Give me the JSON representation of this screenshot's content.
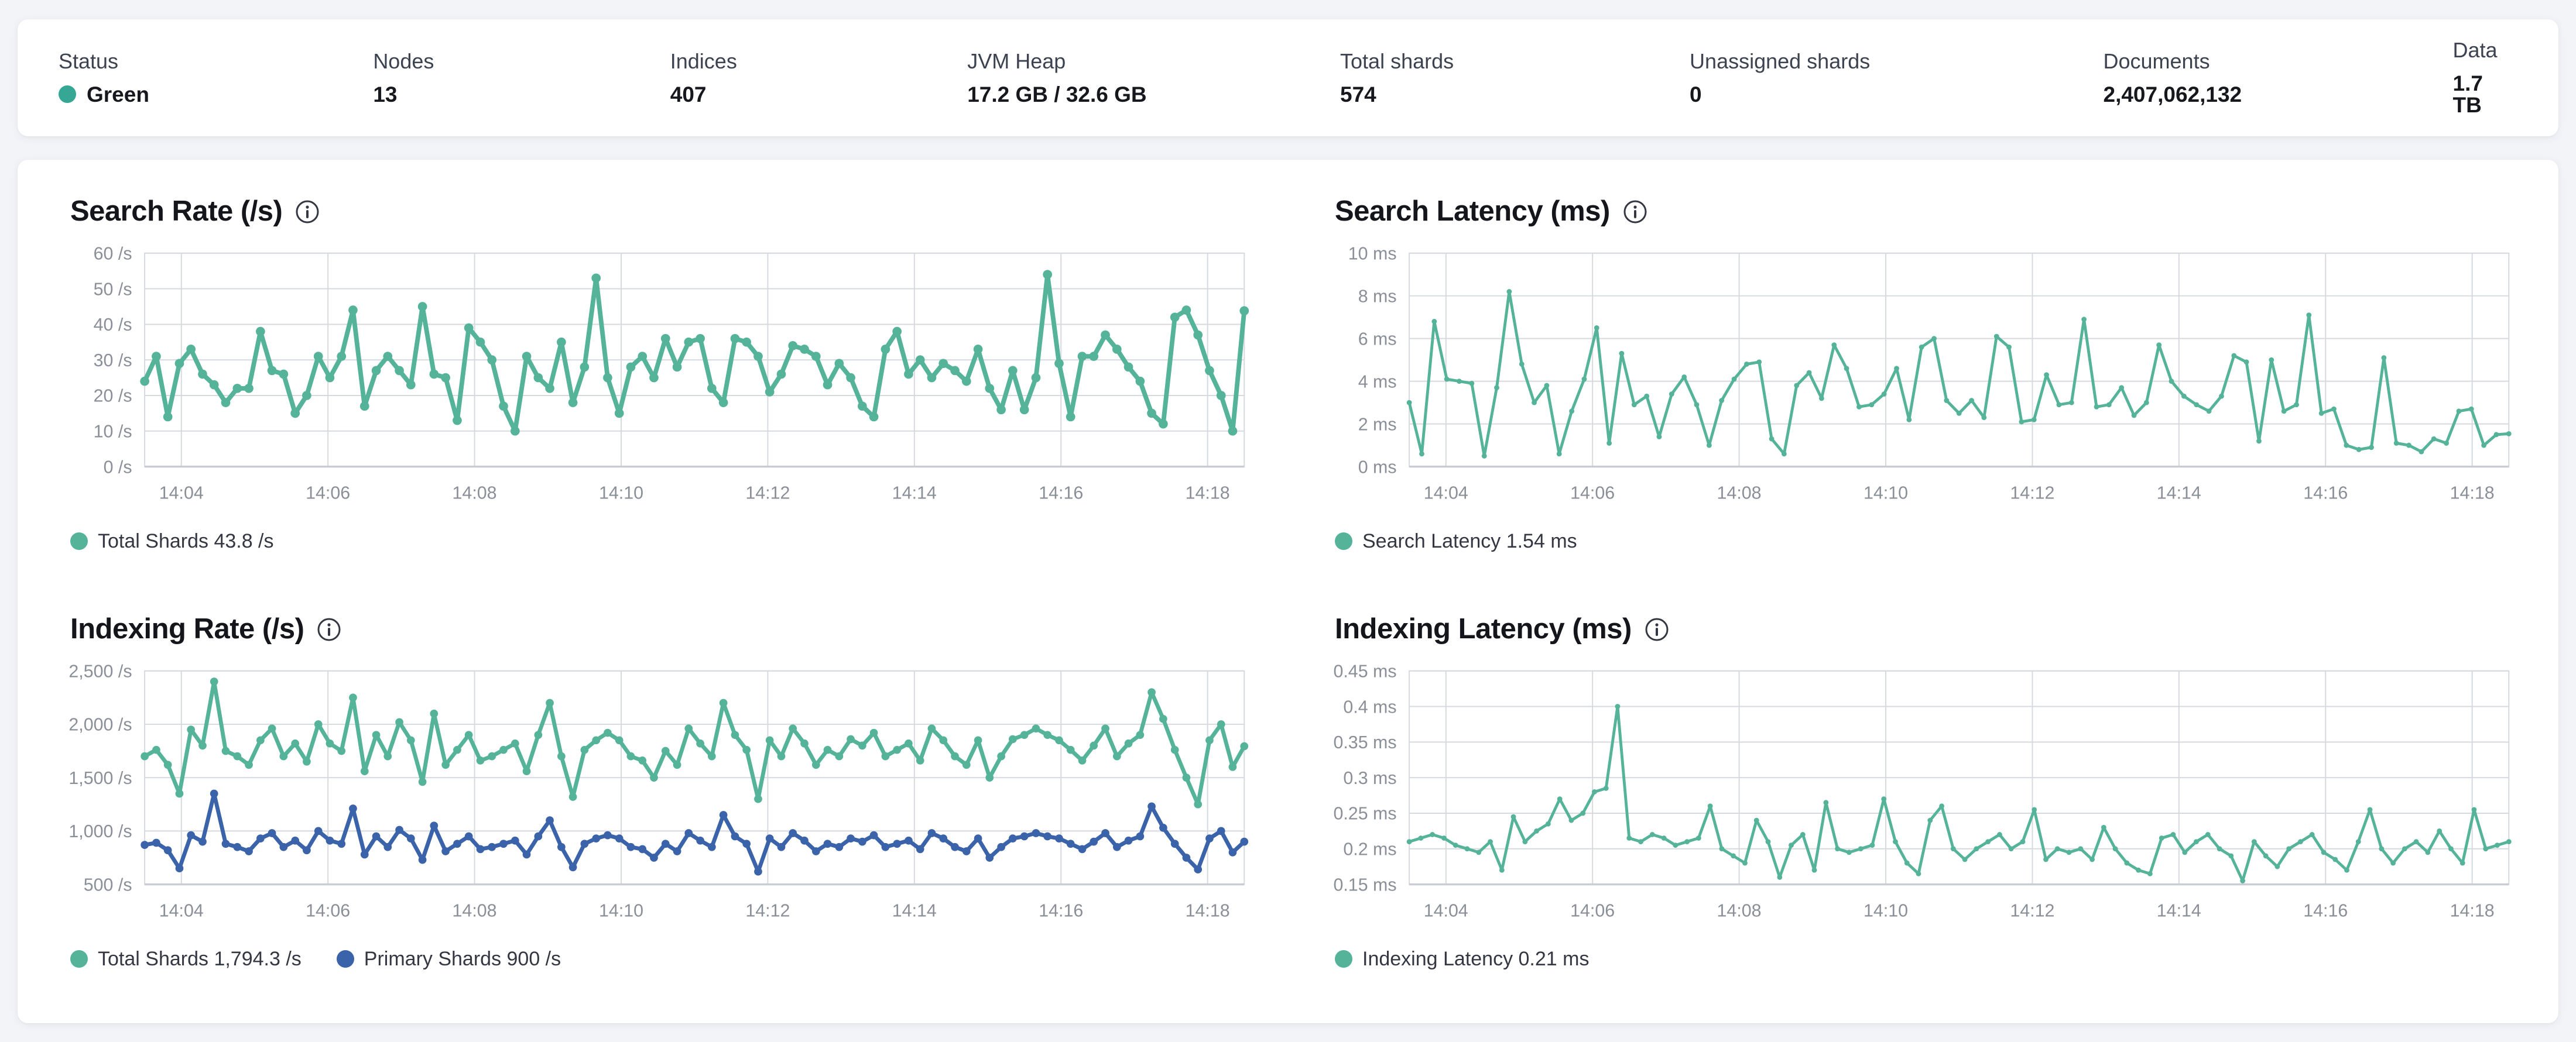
{
  "colors": {
    "teal": "#54B399",
    "blue": "#3B63A9",
    "status_green": "#36A794",
    "grid": "#D6D9DE",
    "axis_line": "#C9CCD2",
    "axis_text": "#8A8F98"
  },
  "status_bar": {
    "items": [
      {
        "label": "Status",
        "value": "Green",
        "has_dot": true
      },
      {
        "label": "Nodes",
        "value": "13"
      },
      {
        "label": "Indices",
        "value": "407"
      },
      {
        "label": "JVM Heap",
        "value": "17.2 GB / 32.6 GB"
      },
      {
        "label": "Total shards",
        "value": "574"
      },
      {
        "label": "Unassigned shards",
        "value": "0"
      },
      {
        "label": "Documents",
        "value": "2,407,062,132"
      },
      {
        "label": "Data",
        "value": "1.7 TB"
      }
    ]
  },
  "charts": [
    {
      "title": "Search Rate (/s)",
      "y": {
        "min": 0,
        "max": 60,
        "ticks": [
          {
            "v": 0,
            "label": "0 /s"
          },
          {
            "v": 10,
            "label": "10 /s"
          },
          {
            "v": 20,
            "label": "20 /s"
          },
          {
            "v": 30,
            "label": "30 /s"
          },
          {
            "v": 40,
            "label": "40 /s"
          },
          {
            "v": 50,
            "label": "50 /s"
          },
          {
            "v": 60,
            "label": "60 /s"
          }
        ]
      },
      "x_ticks": [
        "14:04",
        "14:06",
        "14:08",
        "14:10",
        "14:12",
        "14:14",
        "14:16",
        "14:18"
      ],
      "legend": [
        {
          "label": "Total Shards 43.8 /s",
          "color": "#54B399"
        }
      ],
      "series": [
        {
          "name": "Total Shards",
          "color": "#54B399",
          "width": 8,
          "marker": 8,
          "values": [
            24,
            31,
            14,
            29,
            33,
            26,
            23,
            18,
            22,
            22,
            38,
            27,
            26,
            15,
            20,
            31,
            25,
            31,
            44,
            17,
            27,
            31,
            27,
            23,
            45,
            26,
            25,
            13,
            39,
            35,
            30,
            17,
            10,
            31,
            25,
            22,
            35,
            18,
            28,
            53,
            25,
            15,
            28,
            31,
            25,
            36,
            28,
            35,
            36,
            22,
            18,
            36,
            35,
            31,
            21,
            26,
            34,
            33,
            31,
            23,
            29,
            25,
            17,
            14,
            33,
            38,
            26,
            30,
            25,
            29,
            27,
            24,
            33,
            22,
            16,
            27,
            16,
            25,
            54,
            29,
            14,
            31,
            31,
            37,
            33,
            28,
            24,
            15,
            12,
            42,
            44,
            37,
            27,
            20,
            10,
            43.8
          ]
        }
      ]
    },
    {
      "title": "Search Latency (ms)",
      "y": {
        "min": 0,
        "max": 10,
        "ticks": [
          {
            "v": 0,
            "label": "0 ms"
          },
          {
            "v": 2,
            "label": "2 ms"
          },
          {
            "v": 4,
            "label": "4 ms"
          },
          {
            "v": 6,
            "label": "6 ms"
          },
          {
            "v": 8,
            "label": "8 ms"
          },
          {
            "v": 10,
            "label": "10 ms"
          }
        ]
      },
      "x_ticks": [
        "14:04",
        "14:06",
        "14:08",
        "14:10",
        "14:12",
        "14:14",
        "14:16",
        "14:18"
      ],
      "legend": [
        {
          "label": "Search Latency 1.54 ms",
          "color": "#54B399"
        }
      ],
      "series": [
        {
          "name": "Search Latency",
          "color": "#54B399",
          "width": 5,
          "marker": 4.5,
          "values": [
            3.0,
            0.6,
            6.8,
            4.1,
            4.0,
            3.9,
            0.5,
            3.7,
            8.2,
            4.8,
            3.0,
            3.8,
            0.6,
            2.6,
            4.1,
            6.5,
            1.1,
            5.3,
            2.9,
            3.3,
            1.4,
            3.4,
            4.2,
            2.9,
            1.0,
            3.1,
            4.1,
            4.8,
            4.9,
            1.3,
            0.6,
            3.8,
            4.4,
            3.2,
            5.7,
            4.6,
            2.8,
            2.9,
            3.4,
            4.6,
            2.2,
            5.6,
            6.0,
            3.1,
            2.5,
            3.1,
            2.3,
            6.1,
            5.6,
            2.1,
            2.2,
            4.3,
            2.9,
            3.0,
            6.9,
            2.8,
            2.9,
            3.7,
            2.4,
            3.0,
            5.7,
            4.0,
            3.3,
            2.9,
            2.6,
            3.3,
            5.2,
            4.9,
            1.2,
            5.0,
            2.6,
            2.9,
            7.1,
            2.5,
            2.7,
            1.0,
            0.8,
            0.9,
            5.1,
            1.1,
            1.0,
            0.7,
            1.3,
            1.1,
            2.6,
            2.7,
            1.0,
            1.5,
            1.54
          ]
        }
      ]
    },
    {
      "title": "Indexing Rate (/s)",
      "y": {
        "min": 500,
        "max": 2500,
        "ticks": [
          {
            "v": 500,
            "label": "500 /s"
          },
          {
            "v": 1000,
            "label": "1,000 /s"
          },
          {
            "v": 1500,
            "label": "1,500 /s"
          },
          {
            "v": 2000,
            "label": "2,000 /s"
          },
          {
            "v": 2500,
            "label": "2,500 /s"
          }
        ]
      },
      "x_ticks": [
        "14:04",
        "14:06",
        "14:08",
        "14:10",
        "14:12",
        "14:14",
        "14:16",
        "14:18"
      ],
      "legend": [
        {
          "label": "Total Shards 1,794.3 /s",
          "color": "#54B399"
        },
        {
          "label": "Primary Shards 900 /s",
          "color": "#3B63A9"
        }
      ],
      "series": [
        {
          "name": "Total Shards",
          "color": "#54B399",
          "width": 7,
          "marker": 7,
          "values": [
            1700,
            1760,
            1620,
            1350,
            1950,
            1800,
            2400,
            1750,
            1700,
            1620,
            1850,
            1960,
            1700,
            1820,
            1650,
            2000,
            1820,
            1750,
            2250,
            1560,
            1900,
            1700,
            2020,
            1850,
            1460,
            2100,
            1620,
            1760,
            1900,
            1660,
            1700,
            1760,
            1820,
            1560,
            1900,
            2200,
            1700,
            1320,
            1760,
            1850,
            1920,
            1850,
            1700,
            1660,
            1500,
            1750,
            1620,
            1960,
            1820,
            1700,
            2200,
            1900,
            1760,
            1300,
            1850,
            1700,
            1960,
            1820,
            1620,
            1760,
            1700,
            1860,
            1800,
            1920,
            1700,
            1760,
            1820,
            1660,
            1960,
            1850,
            1700,
            1620,
            1850,
            1500,
            1700,
            1860,
            1900,
            1960,
            1900,
            1850,
            1760,
            1660,
            1800,
            1960,
            1700,
            1820,
            1900,
            2300,
            2050,
            1760,
            1500,
            1250,
            1850,
            2000,
            1600,
            1794.3
          ]
        },
        {
          "name": "Primary Shards",
          "color": "#3B63A9",
          "width": 7,
          "marker": 7,
          "values": [
            870,
            890,
            820,
            650,
            960,
            900,
            1350,
            880,
            850,
            810,
            930,
            980,
            850,
            910,
            820,
            1000,
            910,
            880,
            1210,
            780,
            950,
            850,
            1010,
            930,
            730,
            1050,
            810,
            880,
            950,
            830,
            850,
            880,
            910,
            780,
            950,
            1100,
            850,
            660,
            880,
            930,
            960,
            930,
            850,
            830,
            750,
            880,
            810,
            980,
            910,
            850,
            1150,
            950,
            880,
            620,
            930,
            850,
            980,
            910,
            810,
            880,
            850,
            930,
            900,
            960,
            850,
            880,
            910,
            830,
            980,
            930,
            850,
            810,
            930,
            750,
            850,
            930,
            950,
            980,
            950,
            930,
            880,
            830,
            900,
            980,
            850,
            910,
            950,
            1230,
            1030,
            880,
            750,
            640,
            930,
            1000,
            800,
            900
          ]
        }
      ]
    },
    {
      "title": "Indexing Latency (ms)",
      "y": {
        "min": 0.15,
        "max": 0.45,
        "ticks": [
          {
            "v": 0.15,
            "label": "0.15 ms"
          },
          {
            "v": 0.2,
            "label": "0.2 ms"
          },
          {
            "v": 0.25,
            "label": "0.25 ms"
          },
          {
            "v": 0.3,
            "label": "0.3 ms"
          },
          {
            "v": 0.35,
            "label": "0.35 ms"
          },
          {
            "v": 0.4,
            "label": "0.4 ms"
          },
          {
            "v": 0.45,
            "label": "0.45 ms"
          }
        ]
      },
      "x_ticks": [
        "14:04",
        "14:06",
        "14:08",
        "14:10",
        "14:12",
        "14:14",
        "14:16",
        "14:18"
      ],
      "legend": [
        {
          "label": "Indexing Latency 0.21 ms",
          "color": "#54B399"
        }
      ],
      "series": [
        {
          "name": "Indexing Latency",
          "color": "#54B399",
          "width": 5,
          "marker": 4.5,
          "values": [
            0.21,
            0.215,
            0.22,
            0.215,
            0.205,
            0.2,
            0.195,
            0.21,
            0.17,
            0.245,
            0.21,
            0.225,
            0.235,
            0.27,
            0.24,
            0.25,
            0.28,
            0.285,
            0.4,
            0.215,
            0.21,
            0.22,
            0.215,
            0.205,
            0.21,
            0.215,
            0.26,
            0.2,
            0.19,
            0.18,
            0.24,
            0.21,
            0.16,
            0.205,
            0.22,
            0.17,
            0.265,
            0.2,
            0.195,
            0.2,
            0.205,
            0.27,
            0.21,
            0.18,
            0.165,
            0.24,
            0.26,
            0.2,
            0.185,
            0.2,
            0.21,
            0.22,
            0.2,
            0.21,
            0.255,
            0.185,
            0.2,
            0.195,
            0.2,
            0.185,
            0.23,
            0.2,
            0.18,
            0.17,
            0.165,
            0.215,
            0.22,
            0.195,
            0.21,
            0.22,
            0.2,
            0.19,
            0.155,
            0.21,
            0.19,
            0.175,
            0.2,
            0.21,
            0.22,
            0.195,
            0.185,
            0.17,
            0.21,
            0.255,
            0.2,
            0.18,
            0.2,
            0.21,
            0.195,
            0.225,
            0.2,
            0.18,
            0.255,
            0.2,
            0.205,
            0.21
          ]
        }
      ]
    }
  ]
}
